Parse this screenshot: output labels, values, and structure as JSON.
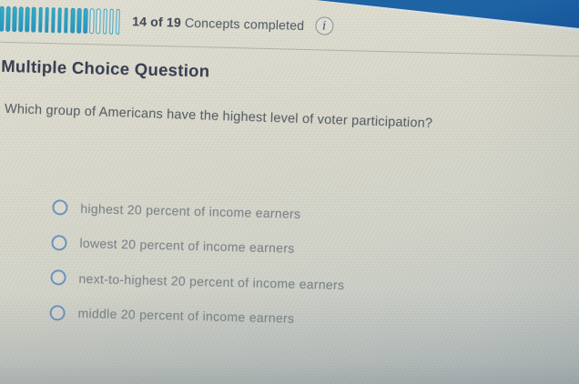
{
  "header": {
    "progress_bold": "14 of 19",
    "progress_text": "Concepts completed",
    "segments_total": 19,
    "segments_completed": 14,
    "info_glyph": "i"
  },
  "question": {
    "kind_label": "Multiple Choice Question",
    "prompt": "Which group of Americans have the highest level of voter participation?",
    "options": [
      "highest 20 percent of income earners",
      "lowest 20 percent of income earners",
      "next-to-highest 20 percent of income earners",
      "middle 20 percent of income earners"
    ],
    "selected_index": null
  },
  "colors": {
    "progress_fill": "#2ba1c2",
    "progress_outline": "#3da4c4",
    "wedge_blue": "#1e63a4",
    "heading_text": "#3a4153",
    "prompt_text": "#5a6167",
    "option_text": "#7d858c",
    "radio_border": "#6d93bd",
    "page_bg": "#d8d5c7"
  }
}
